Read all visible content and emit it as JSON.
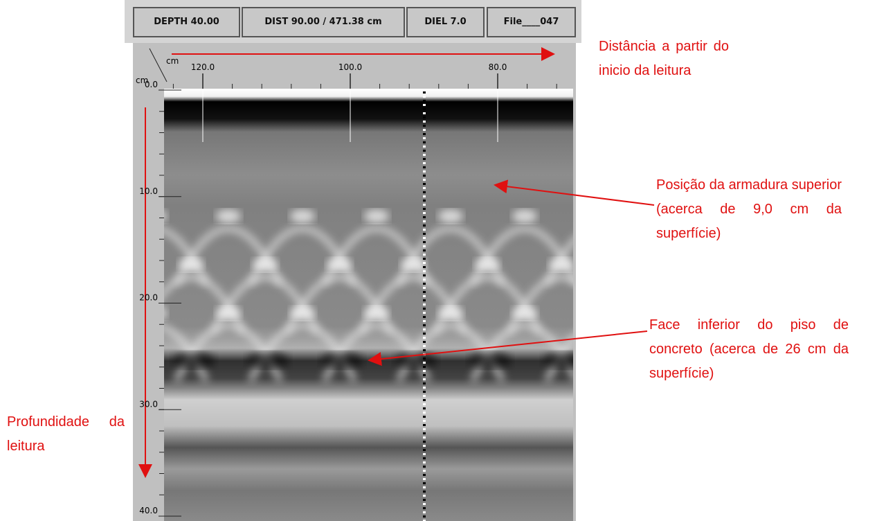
{
  "toolbar": {
    "depth": "DEPTH 40.00",
    "distance": "DIST 90.00 / 471.38 cm",
    "dielectric": "DIEL 7.0",
    "file": "File____047"
  },
  "ruler": {
    "x_unit": "cm",
    "y_unit": "cm",
    "x_ticks": [
      {
        "value": 120,
        "label": "120.0"
      },
      {
        "value": 100,
        "label": "100.0"
      },
      {
        "value": 80,
        "label": "80.0"
      }
    ],
    "y_ticks": [
      {
        "value": 0,
        "label": "0.0"
      },
      {
        "value": 10,
        "label": "10.0"
      },
      {
        "value": 20,
        "label": "20.0"
      },
      {
        "value": 30,
        "label": "30.0"
      },
      {
        "value": 40,
        "label": "40.0"
      }
    ]
  },
  "annotations": {
    "distance": "Distância a partir do inicio da leitura",
    "top_rebar": "Posição da armadura superior (acerca de 9,0 cm da superfície)",
    "bottom_face": "Face inferior do piso de concreto (acerca de 26 cm da superfície)",
    "depth": "Profundidade da leitura"
  }
}
